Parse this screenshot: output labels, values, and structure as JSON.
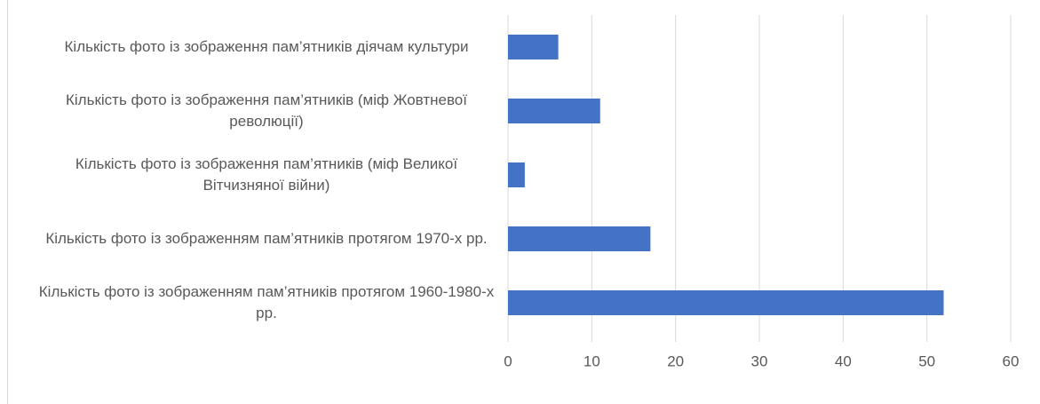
{
  "chart_data": {
    "type": "barh",
    "categories": [
      "Кількість фото із зображення пам’ятників діячам культури",
      "Кількість фото із зображення пам’ятників (міф Жовтневої революції)",
      "Кількість фото із зображення пам’ятників (міф Великої Вітчизняної війни)",
      "Кількість фото із зображенням пам’ятників протягом 1970-х рр.",
      "Кількість фото із зображенням пам’ятників протягом 1960-1980-х рр."
    ],
    "values": [
      6,
      11,
      2,
      17,
      52
    ],
    "color": "#4472c4",
    "xlim": [
      0,
      60
    ],
    "xticks": [
      0,
      10,
      20,
      30,
      40,
      50,
      60
    ],
    "grid": true
  }
}
